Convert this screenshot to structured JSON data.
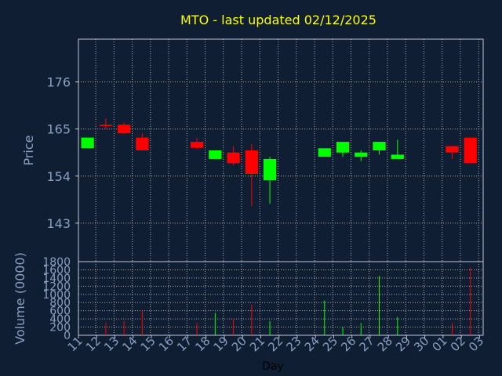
{
  "colors": {
    "background": "#0f1e33",
    "axis": "#c0c8d8",
    "label": "#8aa0c0",
    "title": "#ffff00",
    "grid": "#aaaaaa",
    "up": "#00ff00",
    "down": "#ff0000",
    "xlabel": "#000000"
  },
  "chart_data": {
    "type": "candlestick",
    "title": "MTO - last updated 02/12/2025",
    "xlabel": "Day",
    "price": {
      "ylabel": "Price",
      "ylim": [
        134,
        186
      ],
      "yticks": [
        143,
        154,
        165,
        176
      ],
      "grid": true
    },
    "volume": {
      "ylabel": "Volume (0000)",
      "ylim": [
        0,
        1800
      ],
      "yticks": [
        0,
        200,
        400,
        600,
        800,
        1000,
        1200,
        1400,
        1600,
        1800
      ],
      "grid": true
    },
    "x_ticks": [
      "11",
      "12",
      "13",
      "14",
      "15",
      "16",
      "17",
      "18",
      "19",
      "20",
      "21",
      "22",
      "23",
      "24",
      "25",
      "26",
      "27",
      "28",
      "29",
      "30",
      "01",
      "02",
      "03"
    ],
    "candles": [
      {
        "day": "11",
        "open": 160.5,
        "high": 163.0,
        "low": 160.5,
        "close": 163.0,
        "volume": 0
      },
      {
        "day": "12",
        "open": 166.0,
        "high": 167.5,
        "low": 165.0,
        "close": 165.7,
        "volume": 300
      },
      {
        "day": "13",
        "open": 166.0,
        "high": 166.5,
        "low": 163.8,
        "close": 164.0,
        "volume": 350
      },
      {
        "day": "14",
        "open": 163.0,
        "high": 164.0,
        "low": 160.0,
        "close": 160.0,
        "volume": 600
      },
      {
        "day": "17",
        "open": 162.0,
        "high": 163.0,
        "low": 160.3,
        "close": 160.6,
        "volume": 300
      },
      {
        "day": "18",
        "open": 158.0,
        "high": 160.0,
        "low": 158.0,
        "close": 160.0,
        "volume": 550
      },
      {
        "day": "19",
        "open": 159.5,
        "high": 161.0,
        "low": 156.5,
        "close": 157.0,
        "volume": 400
      },
      {
        "day": "20",
        "open": 160.0,
        "high": 161.5,
        "low": 147.0,
        "close": 154.5,
        "volume": 750
      },
      {
        "day": "21",
        "open": 153.0,
        "high": 158.5,
        "low": 147.5,
        "close": 158.0,
        "volume": 350
      },
      {
        "day": "24",
        "open": 158.5,
        "high": 160.5,
        "low": 158.5,
        "close": 160.5,
        "volume": 850
      },
      {
        "day": "25",
        "open": 159.5,
        "high": 162.0,
        "low": 158.5,
        "close": 162.0,
        "volume": 200
      },
      {
        "day": "26",
        "open": 158.5,
        "high": 160.0,
        "low": 157.5,
        "close": 159.5,
        "volume": 300
      },
      {
        "day": "27",
        "open": 160.0,
        "high": 162.0,
        "low": 159.0,
        "close": 162.0,
        "volume": 1450
      },
      {
        "day": "28",
        "open": 158.0,
        "high": 162.5,
        "low": 158.0,
        "close": 159.0,
        "volume": 450
      },
      {
        "day": "01",
        "open": 161.0,
        "high": 161.0,
        "low": 158.0,
        "close": 159.5,
        "volume": 300
      },
      {
        "day": "02",
        "open": 163.0,
        "high": 163.0,
        "low": 157.0,
        "close": 157.0,
        "volume": 1650
      }
    ]
  }
}
